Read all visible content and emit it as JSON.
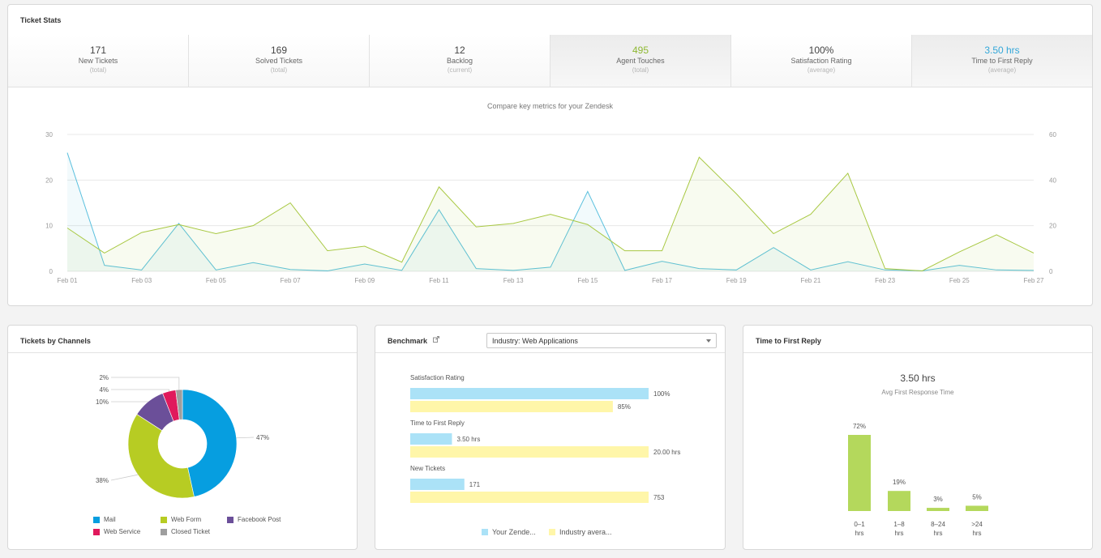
{
  "ticket_stats": {
    "title": "Ticket Stats",
    "tabs": [
      {
        "value": "171",
        "label": "New Tickets",
        "sub": "(total)"
      },
      {
        "value": "169",
        "label": "Solved Tickets",
        "sub": "(total)"
      },
      {
        "value": "12",
        "label": "Backlog",
        "sub": "(current)"
      },
      {
        "value": "495",
        "label": "Agent Touches",
        "sub": "(total)"
      },
      {
        "value": "100%",
        "label": "Satisfaction Rating",
        "sub": "(average)"
      },
      {
        "value": "3.50 hrs",
        "label": "Time to First Reply",
        "sub": "(average)"
      }
    ],
    "chart_caption": "Compare key metrics for your Zendesk"
  },
  "chart_data": [
    {
      "type": "area",
      "x": [
        "Feb 01",
        "Feb 02",
        "Feb 03",
        "Feb 04",
        "Feb 05",
        "Feb 06",
        "Feb 07",
        "Feb 08",
        "Feb 09",
        "Feb 10",
        "Feb 11",
        "Feb 12",
        "Feb 13",
        "Feb 14",
        "Feb 15",
        "Feb 16",
        "Feb 17",
        "Feb 18",
        "Feb 19",
        "Feb 20",
        "Feb 21",
        "Feb 22",
        "Feb 23",
        "Feb 24",
        "Feb 25",
        "Feb 26",
        "Feb 27"
      ],
      "tick_labels": [
        "Feb 01",
        "Feb 03",
        "Feb 05",
        "Feb 07",
        "Feb 09",
        "Feb 11",
        "Feb 13",
        "Feb 15",
        "Feb 17",
        "Feb 19",
        "Feb 21",
        "Feb 23",
        "Feb 25",
        "Feb 27"
      ],
      "series": [
        {
          "axis": "left",
          "color": "#5bc0de",
          "values": [
            26,
            1.3,
            0.3,
            10.5,
            0.3,
            1.9,
            0.4,
            0.1,
            1.6,
            0.2,
            13.5,
            0.6,
            0.2,
            0.9,
            17.5,
            0.2,
            2.2,
            0.6,
            0.3,
            5.2,
            0.3,
            2.1,
            0.3,
            0.1,
            1.3,
            0.3,
            0.2
          ]
        },
        {
          "axis": "right",
          "color": "#a8c842",
          "values": [
            19,
            8,
            17,
            20.5,
            16.5,
            20,
            30,
            9,
            11,
            4,
            37,
            19.5,
            21,
            25,
            20.5,
            9,
            9,
            50,
            34,
            16.5,
            25,
            43,
            1.2,
            0.2,
            8.5,
            16,
            8
          ]
        }
      ],
      "ylim_left": [
        0,
        30
      ],
      "ylim_right": [
        0,
        60
      ],
      "yticks_left": [
        0,
        10,
        20,
        30
      ],
      "yticks_right": [
        0,
        20,
        40,
        60
      ]
    },
    {
      "type": "pie",
      "labels": [
        "Mail",
        "Web Form",
        "Facebook Post",
        "Web Service",
        "Closed Ticket"
      ],
      "values": [
        47,
        38,
        10,
        4,
        2
      ],
      "slice_labels": [
        "47%",
        "38%",
        "10%",
        "4%",
        "2%"
      ],
      "colors": [
        "#069ee0",
        "#b7cc23",
        "#6b4f99",
        "#e0195c",
        "#9e9e9e"
      ]
    },
    {
      "type": "bar",
      "orientation": "horizontal",
      "groups": [
        {
          "label": "Satisfaction Rating",
          "yours": 100,
          "yours_label": "100%",
          "industry": 85,
          "industry_label": "85%"
        },
        {
          "label": "Time to First Reply",
          "yours": 3.5,
          "yours_label": "3.50 hrs",
          "industry": 20,
          "industry_label": "20.00 hrs"
        },
        {
          "label": "New Tickets",
          "yours": 171,
          "yours_label": "171",
          "industry": 753,
          "industry_label": "753"
        }
      ],
      "legend": [
        "Your Zende...",
        "Industry avera..."
      ],
      "colors": {
        "yours": "#abe2f7",
        "industry": "#fff6a9"
      }
    },
    {
      "type": "bar",
      "categories": [
        [
          "0–1",
          "hrs"
        ],
        [
          "1–8",
          "hrs"
        ],
        [
          "8–24",
          "hrs"
        ],
        [
          ">24",
          "hrs"
        ]
      ],
      "values": [
        72,
        19,
        3,
        5
      ],
      "value_labels": [
        "72%",
        "19%",
        "3%",
        "5%"
      ],
      "color": "#b4d85c"
    }
  ],
  "channels": {
    "title": "Tickets by Channels",
    "legend": [
      "Mail",
      "Web Form",
      "Facebook Post",
      "Web Service",
      "Closed Ticket"
    ]
  },
  "benchmark": {
    "title": "Benchmark",
    "select_value": "Industry: Web Applications",
    "legend_yours": "Your Zende...",
    "legend_industry": "Industry avera..."
  },
  "ttfr": {
    "title": "Time to First Reply",
    "big_value": "3.50 hrs",
    "caption": "Avg First Response Time"
  }
}
